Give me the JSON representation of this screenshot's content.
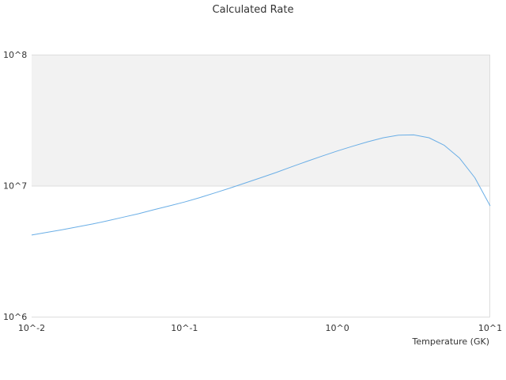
{
  "chart_data": {
    "type": "line",
    "title": "Calculated Rate",
    "xlabel": "Temperature (GK)",
    "ylabel": "",
    "x_scale": "log",
    "y_scale": "log",
    "xlim": [
      0.01,
      10
    ],
    "ylim": [
      1000000,
      100000000
    ],
    "x_tick_labels": [
      "10^-2",
      "10^-1",
      "10^0",
      "10^1"
    ],
    "y_tick_labels": [
      "10^6",
      "10^7",
      "10^8"
    ],
    "grid": true,
    "legend": "none",
    "band_color": "#f2f2f2",
    "line_color": "#6aaee6",
    "series": [
      {
        "x": [
          0.01,
          0.0126,
          0.0158,
          0.02,
          0.0251,
          0.0316,
          0.0398,
          0.05,
          0.0631,
          0.0794,
          0.1,
          0.126,
          0.158,
          0.2,
          0.251,
          0.316,
          0.398,
          0.5,
          0.631,
          0.794,
          1.0,
          1.26,
          1.58,
          2.0,
          2.51,
          3.16,
          3.98,
          5.01,
          6.31,
          7.94,
          10.0
        ],
        "y": [
          4200000,
          4400000,
          4600000,
          4850000,
          5100000,
          5400000,
          5750000,
          6100000,
          6550000,
          7000000,
          7500000,
          8100000,
          8800000,
          9600000,
          10500000,
          11500000,
          12600000,
          13900000,
          15300000,
          16800000,
          18400000,
          20000000,
          21600000,
          23200000,
          24300000,
          24400000,
          23200000,
          20300000,
          16200000,
          11500000,
          7000000
        ]
      }
    ]
  }
}
